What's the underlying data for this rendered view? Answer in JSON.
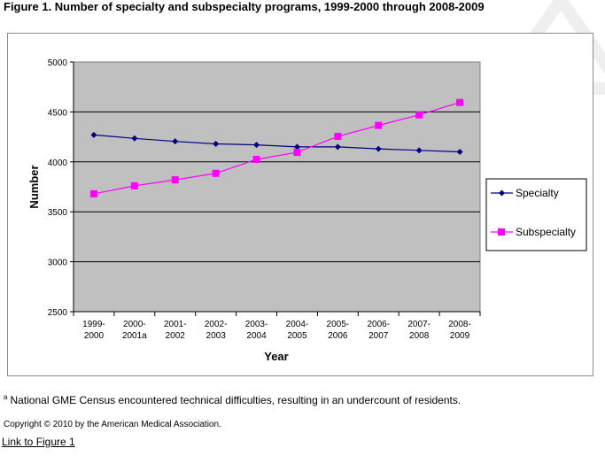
{
  "figure_title": "Figure 1. Number of specialty and subspecialty programs, 1999-2000 through 2008-2009",
  "footnote": {
    "marker": "a",
    "text": "National GME Census encountered technical difficulties, resulting in an undercount of residents."
  },
  "copyright": "Copyright © 2010 by the American Medical Association.",
  "link_text": "Link to Figure 1",
  "colors": {
    "specialty": "#000080",
    "subspecialty": "#ff00ff",
    "plot_bg": "#c0c0c0",
    "grid": "#000000"
  },
  "chart_data": {
    "type": "line",
    "xlabel": "Year",
    "ylabel": "Number",
    "categories": [
      [
        "1999-",
        "2000"
      ],
      [
        "2000-",
        "2001a"
      ],
      [
        "2001-",
        "2002"
      ],
      [
        "2002-",
        "2003"
      ],
      [
        "2003-",
        "2004"
      ],
      [
        "2004-",
        "2005"
      ],
      [
        "2005-",
        "2006"
      ],
      [
        "2006-",
        "2007"
      ],
      [
        "2007-",
        "2008"
      ],
      [
        "2008-",
        "2009"
      ]
    ],
    "ylim": [
      2500,
      5000
    ],
    "yticks": [
      2500,
      3000,
      3500,
      4000,
      4500,
      5000
    ],
    "grid": true,
    "legend_position": "right",
    "series": [
      {
        "name": "Specialty",
        "marker": "diamond",
        "values": [
          4270,
          4235,
          4205,
          4180,
          4170,
          4150,
          4150,
          4130,
          4115,
          4100
        ]
      },
      {
        "name": "Subspecialty",
        "marker": "square",
        "values": [
          3680,
          3760,
          3820,
          3885,
          4025,
          4095,
          4255,
          4365,
          4470,
          4595
        ]
      }
    ]
  }
}
